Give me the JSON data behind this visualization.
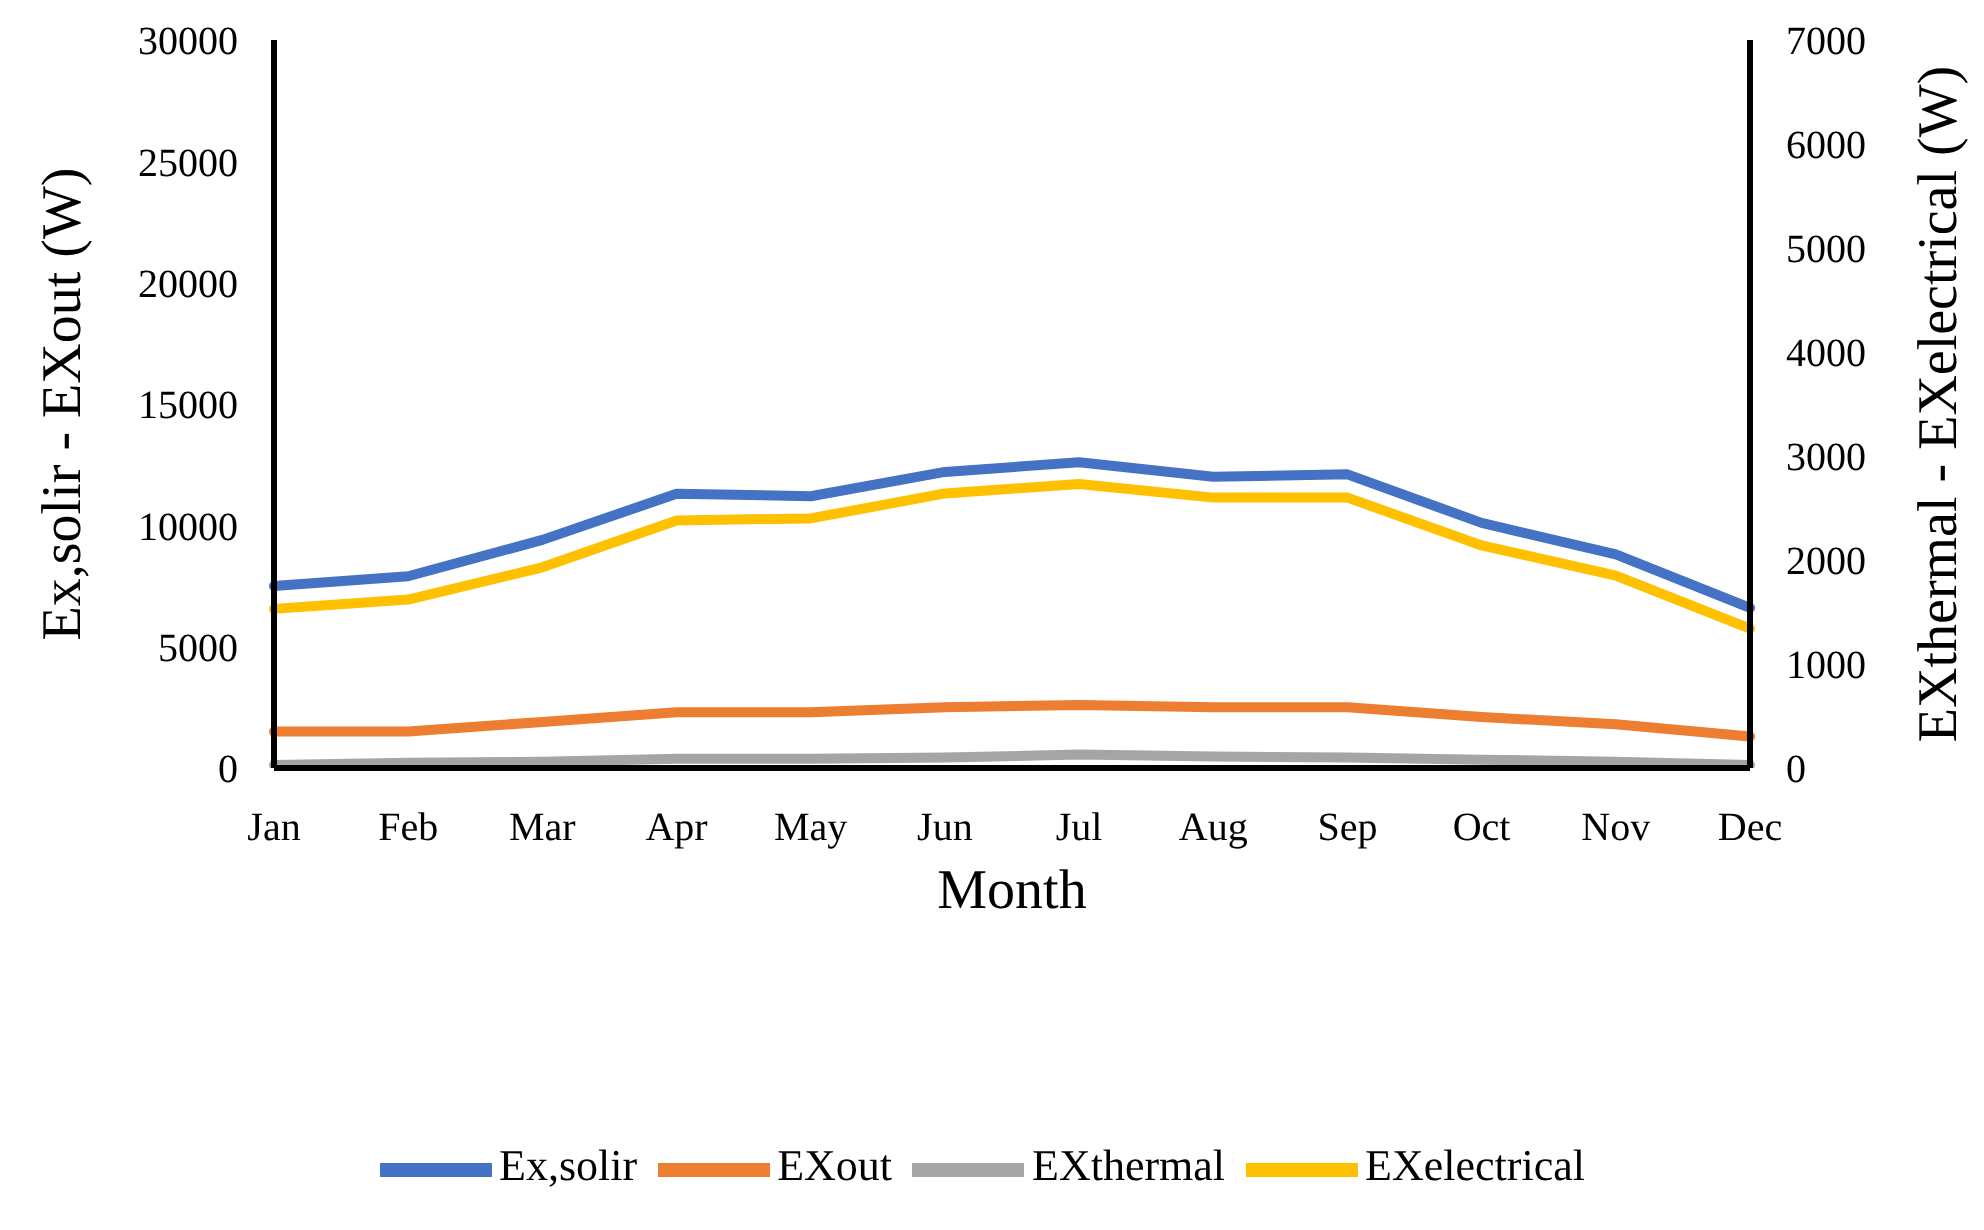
{
  "chart_data": {
    "type": "line",
    "xlabel": "Month",
    "ylabel": "Ex,solir - EXout (W)",
    "y2label": "EXthermal - EXelectrical (W)",
    "categories": [
      "Jan",
      "Feb",
      "Mar",
      "Apr",
      "May",
      "Jun",
      "Jul",
      "Aug",
      "Sep",
      "Oct",
      "Nov",
      "Dec"
    ],
    "series": [
      {
        "name": "Ex,solir",
        "color": "#4472c4",
        "values": [
          7500,
          7900,
          9400,
          11300,
          11200,
          12200,
          12600,
          12000,
          12100,
          10100,
          8800,
          6600
        ]
      },
      {
        "name": "EXout",
        "color": "#ed7d31",
        "values": [
          1500,
          1500,
          1900,
          2300,
          2300,
          2500,
          2600,
          2500,
          2500,
          2100,
          1800,
          1300
        ]
      },
      {
        "name": "EXthermal",
        "color": "#a5a5a5",
        "axis": "y2",
        "values": [
          30,
          50,
          60,
          90,
          90,
          100,
          130,
          110,
          100,
          80,
          60,
          30
        ]
      },
      {
        "name": "EXelectrical",
        "color": "#ffc000",
        "axis": "y2",
        "values": [
          1530,
          1620,
          1930,
          2380,
          2400,
          2640,
          2730,
          2600,
          2600,
          2140,
          1850,
          1340
        ]
      }
    ],
    "ylim": [
      0,
      30000
    ],
    "yticks": [
      0,
      5000,
      10000,
      15000,
      20000,
      25000,
      30000
    ],
    "y2lim": [
      0,
      7000
    ],
    "y2ticks": [
      0,
      1000,
      2000,
      3000,
      4000,
      5000,
      6000,
      7000
    ],
    "grid": false,
    "legend": "bottom",
    "marker": "none",
    "line_style": "solid"
  }
}
